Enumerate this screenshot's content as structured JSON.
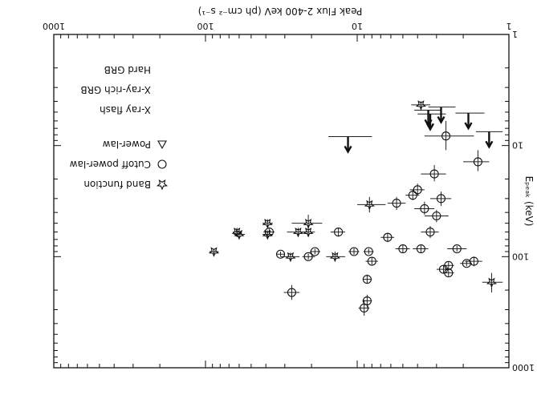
{
  "chart_data": {
    "type": "scatter",
    "xlabel": "Peak Flux 2-400 keV (ph cm⁻² s⁻¹)",
    "ylabel": "Eₚₑₐₖ (keV)",
    "xscale": "log",
    "yscale": "log",
    "xlim": [
      1,
      1000
    ],
    "ylim": [
      1,
      1000
    ],
    "x_ticklabels": [
      "1",
      "10",
      "100",
      "1000"
    ],
    "y_ticklabels": [
      "1",
      "10",
      "100",
      "1000"
    ],
    "rotation": "plot rendered upside-down (rotated 180 degrees)",
    "legend": {
      "placement": "upper-right",
      "markers": [
        {
          "symbol": "star",
          "label": "Band function"
        },
        {
          "symbol": "circle",
          "label": "Cutoff power-law"
        },
        {
          "symbol": "triangle",
          "label": "Power-law"
        }
      ],
      "classes": [
        "X-ray flash",
        "X-ray-rich GRB",
        "Hard GRB"
      ]
    },
    "series": [
      {
        "name": "Band function",
        "marker": "star",
        "points": [
          {
            "x": 1.3,
            "y": 170,
            "xerr": [
              1.1,
              1.5
            ],
            "yerr": [
              140,
              210
            ]
          },
          {
            "x": 8.3,
            "y": 34,
            "xerr": [
              6.5,
              10
            ],
            "yerr": [
              29,
              40
            ]
          },
          {
            "x": 14,
            "y": 100,
            "xerr": [
              12,
              16
            ],
            "yerr": [
              90,
              110
            ]
          },
          {
            "x": 21,
            "y": 50,
            "xerr": [
              17,
              27
            ],
            "yerr": [
              42,
              60
            ]
          },
          {
            "x": 21,
            "y": 60,
            "xerr": [
              19,
              24
            ],
            "yerr": [
              55,
              66
            ]
          },
          {
            "x": 24.5,
            "y": 60,
            "xerr": [
              21,
              29
            ],
            "yerr": [
              55,
              66
            ]
          },
          {
            "x": 27.5,
            "y": 100,
            "xerr": [
              24,
              32
            ],
            "yerr": [
              92,
              108
            ]
          },
          {
            "x": 39,
            "y": 63,
            "xerr": [
              36,
              42
            ],
            "yerr": [
              58,
              68
            ]
          },
          {
            "x": 39,
            "y": 50,
            "xerr": [
              36,
              42
            ],
            "yerr": [
              46,
              54
            ]
          },
          {
            "x": 62,
            "y": 60,
            "xerr": [
              58,
              66
            ],
            "yerr": [
              55,
              66
            ]
          },
          {
            "x": 60,
            "y": 63,
            "xerr": [
              55,
              65
            ],
            "yerr": [
              59,
              67
            ]
          },
          {
            "x": 88,
            "y": 90,
            "xerr": [
              82,
              94
            ],
            "yerr": [
              85,
              95
            ]
          }
        ]
      },
      {
        "name": "Cutoff power-law",
        "marker": "circle",
        "points": [
          {
            "x": 1.6,
            "y": 14,
            "xerr": [
              1.35,
              2.0
            ],
            "yerr": [
              11,
              17
            ]
          },
          {
            "x": 1.7,
            "y": 110,
            "xerr": [
              1.5,
              1.95
            ],
            "yerr": [
              100,
              122
            ]
          },
          {
            "x": 1.9,
            "y": 115,
            "xerr": [
              1.75,
              2.1
            ],
            "yerr": [
              108,
              122
            ]
          },
          {
            "x": 2.2,
            "y": 85,
            "xerr": [
              1.9,
              2.55
            ],
            "yerr": [
              80,
              90
            ]
          },
          {
            "x": 2.5,
            "y": 140,
            "xerr": [
              2.3,
              2.7
            ],
            "yerr": [
              130,
              150
            ]
          },
          {
            "x": 2.5,
            "y": 120,
            "xerr": [
              2.3,
              2.7
            ],
            "yerr": [
              112,
              128
            ]
          },
          {
            "x": 2.6,
            "y": 8.2,
            "xerr": [
              1.7,
              3.6
            ],
            "yerr": [
              6,
              11
            ]
          },
          {
            "x": 2.7,
            "y": 130,
            "xerr": [
              2.45,
              3.0
            ],
            "yerr": [
              120,
              140
            ]
          },
          {
            "x": 2.8,
            "y": 30,
            "xerr": [
              2.4,
              3.3
            ],
            "yerr": [
              26,
              35
            ]
          },
          {
            "x": 3.0,
            "y": 43,
            "xerr": [
              2.5,
              3.6
            ],
            "yerr": [
              38,
              49
            ]
          },
          {
            "x": 3.1,
            "y": 18,
            "xerr": [
              2.6,
              3.8
            ],
            "yerr": [
              15,
              21
            ]
          },
          {
            "x": 3.3,
            "y": 60,
            "xerr": [
              2.9,
              3.8
            ],
            "yerr": [
              53,
              68
            ]
          },
          {
            "x": 3.6,
            "y": 37,
            "xerr": [
              3.1,
              4.2
            ],
            "yerr": [
              32,
              42
            ]
          },
          {
            "x": 3.8,
            "y": 85,
            "xerr": [
              3.4,
              4.3
            ],
            "yerr": [
              79,
              92
            ]
          },
          {
            "x": 4.0,
            "y": 25,
            "xerr": [
              3.6,
              4.5
            ],
            "yerr": [
              22,
              28
            ]
          },
          {
            "x": 4.3,
            "y": 28,
            "xerr": [
              3.9,
              4.8
            ],
            "yerr": [
              25,
              31
            ]
          },
          {
            "x": 5.0,
            "y": 85,
            "xerr": [
              4.5,
              5.6
            ],
            "yerr": [
              79,
              92
            ]
          },
          {
            "x": 5.5,
            "y": 33,
            "xerr": [
              4.8,
              6.3
            ],
            "yerr": [
              29,
              38
            ]
          },
          {
            "x": 6.3,
            "y": 67,
            "xerr": [
              5.7,
              7.0
            ],
            "yerr": [
              61,
              74
            ]
          },
          {
            "x": 8.0,
            "y": 110,
            "xerr": [
              7.3,
              8.8
            ],
            "yerr": [
              102,
              118
            ]
          },
          {
            "x": 8.4,
            "y": 90,
            "xerr": [
              7.8,
              9.1
            ],
            "yerr": [
              85,
              95
            ]
          },
          {
            "x": 8.6,
            "y": 250,
            "xerr": [
              8.0,
              9.2
            ],
            "yerr": [
              220,
              285
            ]
          },
          {
            "x": 8.6,
            "y": 160,
            "xerr": [
              8.0,
              9.2
            ],
            "yerr": [
              145,
              175
            ]
          },
          {
            "x": 9.0,
            "y": 290,
            "xerr": [
              8.3,
              9.8
            ],
            "yerr": [
              245,
              340
            ]
          },
          {
            "x": 10.5,
            "y": 90,
            "xerr": [
              9.7,
              11.4
            ],
            "yerr": [
              84,
              96
            ]
          },
          {
            "x": 13.3,
            "y": 60,
            "xerr": [
              12,
              15
            ],
            "yerr": [
              55,
              66
            ]
          },
          {
            "x": 19,
            "y": 90,
            "xerr": [
              17.5,
              20.5
            ],
            "yerr": [
              85,
              95
            ]
          },
          {
            "x": 21,
            "y": 100,
            "xerr": [
              19,
              23
            ],
            "yerr": [
              94,
              106
            ]
          },
          {
            "x": 27,
            "y": 210,
            "xerr": [
              24,
              30.5
            ],
            "yerr": [
              180,
              245
            ]
          },
          {
            "x": 32,
            "y": 95,
            "xerr": [
              30,
              34
            ],
            "yerr": [
              90,
              100
            ]
          },
          {
            "x": 38,
            "y": 60,
            "xerr": [
              35,
              41.5
            ],
            "yerr": [
              56,
              64
            ]
          }
        ]
      },
      {
        "name": "Power-law",
        "marker": "triangle",
        "points": []
      }
    ],
    "lower_limits": [
      {
        "x": 1.35,
        "y": 7.5,
        "xerr": [
          1.1,
          1.65
        ]
      },
      {
        "x": 1.85,
        "y": 5.1,
        "xerr": [
          1.45,
          2.25
        ]
      },
      {
        "x": 2.8,
        "y": 4.5,
        "xerr": [
          2.25,
          3.4
        ]
      },
      {
        "x": 3.3,
        "y": 5.2,
        "xerr": [
          2.6,
          4.0
        ]
      },
      {
        "x": 3.4,
        "y": 4.8,
        "xerr": [
          2.8,
          4.2
        ]
      },
      {
        "x": 11.5,
        "y": 8.3,
        "xerr": [
          8.0,
          15.5
        ]
      }
    ],
    "xray_flash_points": [
      {
        "x": 3.8,
        "y": 4.3,
        "xerr": [
          3.3,
          4.4
        ],
        "yerr": [
          4.0,
          4.6
        ]
      }
    ]
  }
}
